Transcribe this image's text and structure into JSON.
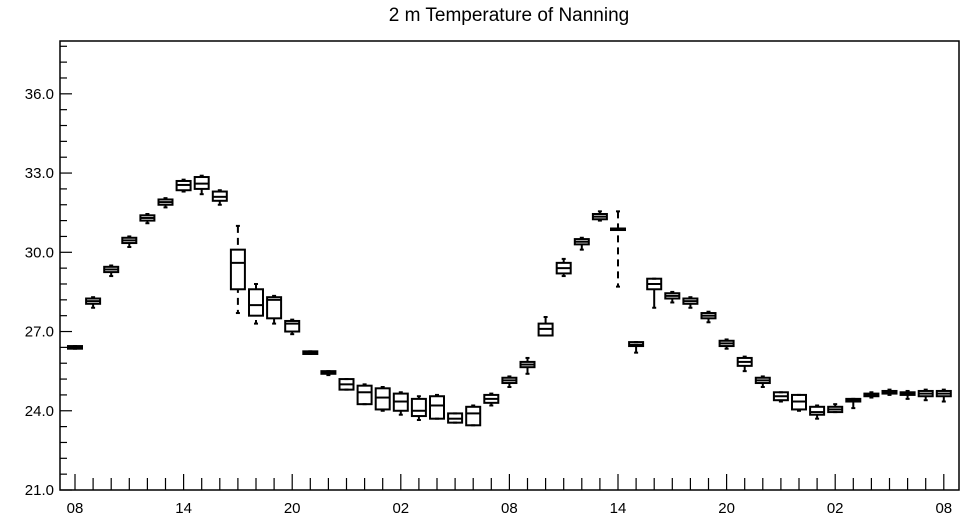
{
  "chart_data": {
    "type": "box",
    "title": "2 m Temperature of Nanning",
    "xlabel": "",
    "ylabel": "",
    "ylim": [
      21.0,
      38.0
    ],
    "yticks": [
      21.0,
      24.0,
      27.0,
      30.0,
      33.0,
      36.0
    ],
    "ytick_labels": [
      "21.0",
      "24.0",
      "27.0",
      "30.0",
      "33.0",
      "36.0"
    ],
    "xlim": [
      0,
      49.5
    ],
    "xticks": [
      0,
      6,
      12,
      18,
      24,
      30,
      36,
      42,
      48
    ],
    "xtick_labels": [
      "08",
      "14",
      "20",
      "02",
      "08",
      "14",
      "20",
      "02",
      "08"
    ],
    "grid": false,
    "x_step_hours": 1,
    "boxes": [
      {
        "x": 0,
        "min": 26.35,
        "q1": 26.35,
        "median": 26.4,
        "q3": 26.45,
        "max": 26.45
      },
      {
        "x": 1,
        "min": 27.9,
        "q1": 28.05,
        "median": 28.15,
        "q3": 28.25,
        "max": 28.3
      },
      {
        "x": 2,
        "min": 29.1,
        "q1": 29.25,
        "median": 29.35,
        "q3": 29.45,
        "max": 29.5
      },
      {
        "x": 3,
        "min": 30.2,
        "q1": 30.35,
        "median": 30.45,
        "q3": 30.55,
        "max": 30.6
      },
      {
        "x": 4,
        "min": 31.1,
        "q1": 31.2,
        "median": 31.3,
        "q3": 31.4,
        "max": 31.45
      },
      {
        "x": 5,
        "min": 31.7,
        "q1": 31.8,
        "median": 31.9,
        "q3": 32.0,
        "max": 32.05
      },
      {
        "x": 6,
        "min": 32.3,
        "q1": 32.35,
        "median": 32.55,
        "q3": 32.7,
        "max": 32.75
      },
      {
        "x": 7,
        "min": 32.2,
        "q1": 32.4,
        "median": 32.6,
        "q3": 32.85,
        "max": 32.9
      },
      {
        "x": 8,
        "min": 31.8,
        "q1": 31.95,
        "median": 32.1,
        "q3": 32.3,
        "max": 32.35
      },
      {
        "x": 9,
        "min": 27.7,
        "q1": 28.6,
        "median": 29.6,
        "q3": 30.1,
        "max": 31.0
      },
      {
        "x": 10,
        "min": 27.3,
        "q1": 27.6,
        "median": 28.0,
        "q3": 28.6,
        "max": 28.8
      },
      {
        "x": 11,
        "min": 27.3,
        "q1": 27.5,
        "median": 28.2,
        "q3": 28.3,
        "max": 28.35
      },
      {
        "x": 12,
        "min": 26.9,
        "q1": 27.0,
        "median": 27.3,
        "q3": 27.4,
        "max": 27.45
      },
      {
        "x": 13,
        "min": 26.15,
        "q1": 26.15,
        "median": 26.2,
        "q3": 26.25,
        "max": 26.25
      },
      {
        "x": 14,
        "min": 25.35,
        "q1": 25.4,
        "median": 25.45,
        "q3": 25.5,
        "max": 25.5
      },
      {
        "x": 15,
        "min": 24.8,
        "q1": 24.8,
        "median": 25.0,
        "q3": 25.2,
        "max": 25.2
      },
      {
        "x": 16,
        "min": 24.25,
        "q1": 24.25,
        "median": 24.7,
        "q3": 24.95,
        "max": 25.0
      },
      {
        "x": 17,
        "min": 24.0,
        "q1": 24.05,
        "median": 24.5,
        "q3": 24.85,
        "max": 24.9
      },
      {
        "x": 18,
        "min": 23.85,
        "q1": 24.0,
        "median": 24.35,
        "q3": 24.65,
        "max": 24.7
      },
      {
        "x": 19,
        "min": 23.65,
        "q1": 23.8,
        "median": 24.0,
        "q3": 24.45,
        "max": 24.55
      },
      {
        "x": 20,
        "min": 23.7,
        "q1": 23.7,
        "median": 24.2,
        "q3": 24.55,
        "max": 24.6
      },
      {
        "x": 21,
        "min": 23.55,
        "q1": 23.55,
        "median": 23.7,
        "q3": 23.9,
        "max": 23.9
      },
      {
        "x": 22,
        "min": 23.45,
        "q1": 23.45,
        "median": 23.9,
        "q3": 24.15,
        "max": 24.2
      },
      {
        "x": 23,
        "min": 24.2,
        "q1": 24.3,
        "median": 24.45,
        "q3": 24.6,
        "max": 24.65
      },
      {
        "x": 24,
        "min": 24.9,
        "q1": 25.05,
        "median": 25.15,
        "q3": 25.25,
        "max": 25.3
      },
      {
        "x": 25,
        "min": 25.4,
        "q1": 25.65,
        "median": 25.75,
        "q3": 25.85,
        "max": 26.0
      },
      {
        "x": 26,
        "min": 26.85,
        "q1": 26.85,
        "median": 27.1,
        "q3": 27.3,
        "max": 27.55
      },
      {
        "x": 27,
        "min": 29.1,
        "q1": 29.2,
        "median": 29.4,
        "q3": 29.6,
        "max": 29.75
      },
      {
        "x": 28,
        "min": 30.1,
        "q1": 30.3,
        "median": 30.4,
        "q3": 30.5,
        "max": 30.55
      },
      {
        "x": 29,
        "min": 31.2,
        "q1": 31.25,
        "median": 31.35,
        "q3": 31.45,
        "max": 31.55
      },
      {
        "x": 30,
        "min": 28.7,
        "q1": 30.9,
        "median": 30.9,
        "q3": 30.9,
        "max": 31.55
      },
      {
        "x": 31,
        "min": 26.2,
        "q1": 26.45,
        "median": 26.5,
        "q3": 26.6,
        "max": 26.6
      },
      {
        "x": 32,
        "min": 27.9,
        "q1": 28.6,
        "median": 28.8,
        "q3": 29.0,
        "max": 29.0
      },
      {
        "x": 33,
        "min": 28.1,
        "q1": 28.25,
        "median": 28.35,
        "q3": 28.45,
        "max": 28.5
      },
      {
        "x": 34,
        "min": 27.9,
        "q1": 28.05,
        "median": 28.15,
        "q3": 28.25,
        "max": 28.3
      },
      {
        "x": 35,
        "min": 27.35,
        "q1": 27.5,
        "median": 27.6,
        "q3": 27.7,
        "max": 27.75
      },
      {
        "x": 36,
        "min": 26.35,
        "q1": 26.45,
        "median": 26.55,
        "q3": 26.65,
        "max": 26.7
      },
      {
        "x": 37,
        "min": 25.5,
        "q1": 25.7,
        "median": 25.85,
        "q3": 26.0,
        "max": 26.05
      },
      {
        "x": 38,
        "min": 24.9,
        "q1": 25.05,
        "median": 25.15,
        "q3": 25.25,
        "max": 25.3
      },
      {
        "x": 39,
        "min": 24.35,
        "q1": 24.4,
        "median": 24.55,
        "q3": 24.7,
        "max": 24.7
      },
      {
        "x": 40,
        "min": 24.0,
        "q1": 24.05,
        "median": 24.35,
        "q3": 24.6,
        "max": 24.6
      },
      {
        "x": 41,
        "min": 23.7,
        "q1": 23.85,
        "median": 23.95,
        "q3": 24.15,
        "max": 24.2
      },
      {
        "x": 42,
        "min": 23.95,
        "q1": 23.95,
        "median": 24.05,
        "q3": 24.15,
        "max": 24.25
      },
      {
        "x": 43,
        "min": 24.1,
        "q1": 24.35,
        "median": 24.4,
        "q3": 24.45,
        "max": 24.45
      },
      {
        "x": 44,
        "min": 24.5,
        "q1": 24.55,
        "median": 24.6,
        "q3": 24.65,
        "max": 24.7
      },
      {
        "x": 45,
        "min": 24.6,
        "q1": 24.65,
        "median": 24.7,
        "q3": 24.75,
        "max": 24.8
      },
      {
        "x": 46,
        "min": 24.45,
        "q1": 24.6,
        "median": 24.65,
        "q3": 24.7,
        "max": 24.75
      },
      {
        "x": 47,
        "min": 24.4,
        "q1": 24.55,
        "median": 24.65,
        "q3": 24.75,
        "max": 24.8
      },
      {
        "x": 48,
        "min": 24.35,
        "q1": 24.55,
        "median": 24.65,
        "q3": 24.75,
        "max": 24.8
      }
    ],
    "colors": {
      "stroke": "#000000",
      "background": "#ffffff"
    }
  }
}
